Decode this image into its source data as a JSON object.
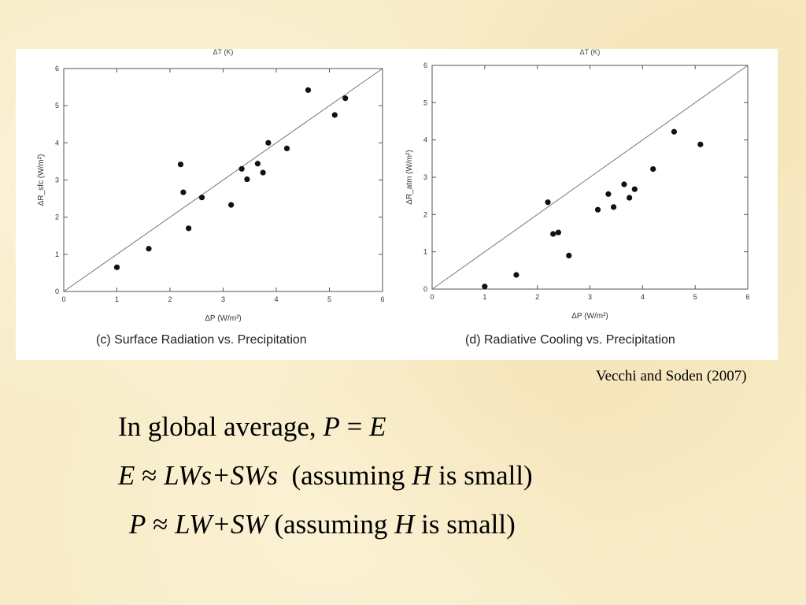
{
  "citation": "Vecchi and Soden (2007)",
  "equations": {
    "line1": {
      "prefix": "In global average, ",
      "lhs": "P",
      "op": " = ",
      "rhs": "E"
    },
    "line2": {
      "lhs": "E",
      "op": " ≈ ",
      "rhs": "LWs+SWs",
      "cond_open": "  (assuming ",
      "var": "H",
      "cond_close": " is small)"
    },
    "line3": {
      "lhs": "P",
      "op": " ≈ ",
      "rhs": "LW+SW",
      "cond_open": " (assuming ",
      "var": "H",
      "cond_close": " is small)"
    }
  },
  "chart_data": [
    {
      "type": "scatter",
      "top_label": "ΔT (K)",
      "xlabel": "ΔP (W/m²)",
      "ylabel": "ΔR_sfc (W/m²)",
      "caption": "(c) Surface Radiation vs. Precipitation",
      "xlim": [
        0,
        6
      ],
      "ylim": [
        0,
        6
      ],
      "xticks": [
        "0",
        "1",
        "2",
        "3",
        "4",
        "5",
        "6"
      ],
      "yticks": [
        "0",
        "1",
        "2",
        "3",
        "4",
        "5",
        "6"
      ],
      "reference_line": "y = x",
      "x": [
        1.0,
        1.6,
        2.2,
        2.25,
        2.35,
        2.6,
        3.15,
        3.35,
        3.45,
        3.65,
        3.75,
        3.85,
        4.2,
        4.6,
        5.1,
        5.3
      ],
      "y": [
        0.65,
        1.15,
        3.42,
        2.67,
        1.7,
        2.53,
        2.33,
        3.3,
        3.02,
        3.44,
        3.2,
        4.0,
        3.85,
        5.42,
        4.75,
        5.2
      ]
    },
    {
      "type": "scatter",
      "top_label": "ΔT (K)",
      "xlabel": "ΔP (W/m²)",
      "ylabel": "ΔR_atm (W/m²)",
      "caption": "(d) Radiative Cooling vs. Precipitation",
      "xlim": [
        0,
        6
      ],
      "ylim": [
        0,
        6
      ],
      "xticks": [
        "0",
        "1",
        "2",
        "3",
        "4",
        "5",
        "6"
      ],
      "yticks": [
        "0",
        "1",
        "2",
        "3",
        "4",
        "5",
        "6"
      ],
      "reference_line": "y = x",
      "x": [
        1.0,
        1.6,
        2.2,
        2.3,
        2.4,
        2.6,
        3.15,
        3.35,
        3.45,
        3.65,
        3.75,
        3.85,
        4.2,
        4.6,
        5.1
      ],
      "y": [
        0.07,
        0.38,
        2.33,
        1.48,
        1.52,
        0.9,
        2.13,
        2.55,
        2.2,
        2.81,
        2.45,
        2.68,
        3.22,
        4.22,
        3.88
      ]
    }
  ]
}
